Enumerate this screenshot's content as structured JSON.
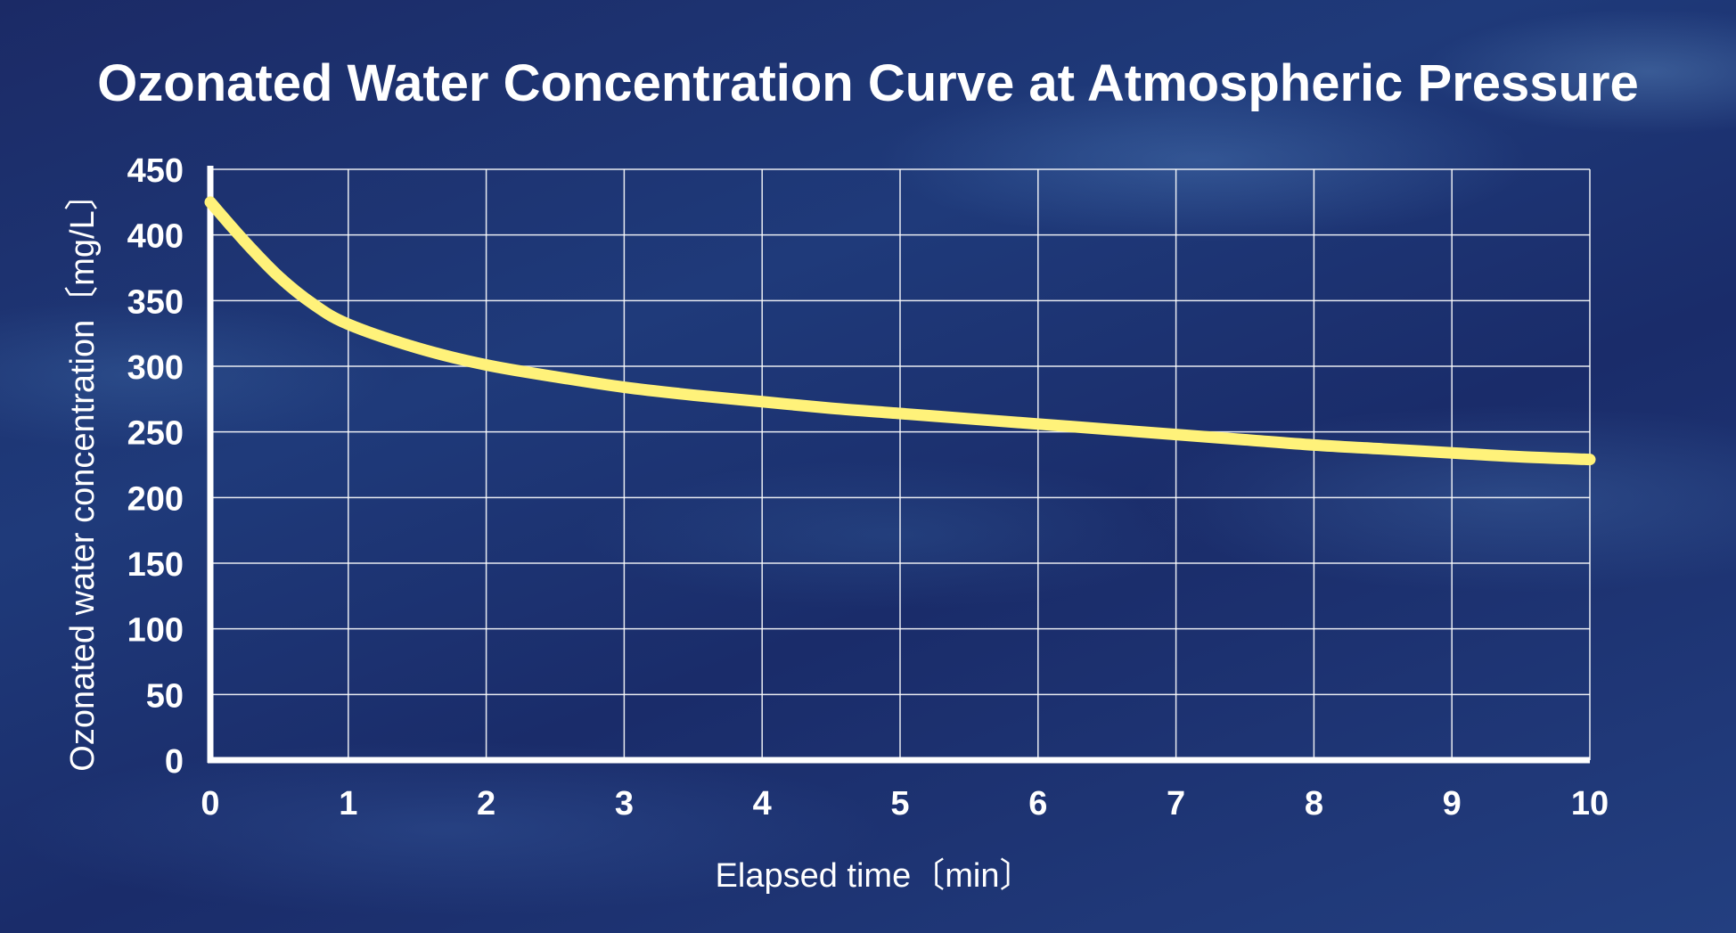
{
  "chart_data": {
    "type": "line",
    "title": "Ozonated Water Concentration Curve at Atmospheric Pressure",
    "xlabel": "Elapsed time〔min〕",
    "ylabel": "Ozonated water concentration〔mg/L〕",
    "xlim": [
      0,
      10
    ],
    "ylim": [
      0,
      450
    ],
    "x_ticks": [
      "0",
      "1",
      "2",
      "3",
      "4",
      "5",
      "6",
      "7",
      "8",
      "9",
      "10"
    ],
    "y_ticks": [
      "0",
      "50",
      "100",
      "150",
      "200",
      "250",
      "300",
      "350",
      "400",
      "450"
    ],
    "grid": true,
    "series": [
      {
        "name": "Ozonated water concentration",
        "color": "#fff27a",
        "x": [
          0,
          0.25,
          0.5,
          0.75,
          1,
          1.5,
          2,
          2.5,
          3,
          3.5,
          4,
          4.5,
          5,
          5.5,
          6,
          6.5,
          7,
          7.5,
          8,
          8.5,
          9,
          9.5,
          10
        ],
        "y": [
          425,
          395,
          368,
          347,
          332,
          314,
          301,
          292,
          284,
          278,
          273,
          268,
          264,
          260,
          256,
          252,
          248,
          244,
          240,
          237,
          234,
          231,
          229
        ]
      }
    ]
  }
}
